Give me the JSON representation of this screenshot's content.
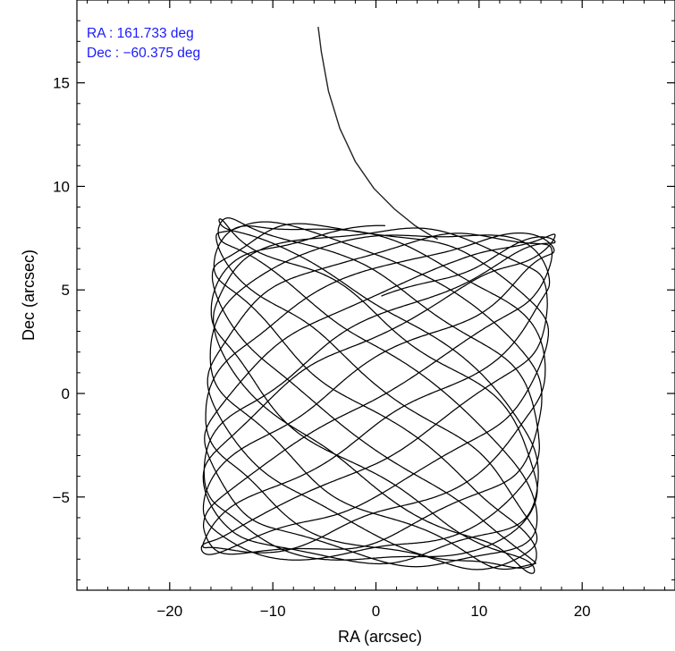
{
  "chart_data": {
    "type": "line",
    "title": "",
    "xlabel": "RA (arcsec)",
    "ylabel": "Dec (arcsec)",
    "xlim": [
      -29,
      29
    ],
    "ylim": [
      -9.5,
      19
    ],
    "x_major_ticks": [
      -20,
      -10,
      0,
      10,
      20
    ],
    "x_tick_labels": [
      "−20",
      "−10",
      "0",
      "10",
      "20"
    ],
    "x_minor_step": 2,
    "y_major_ticks": [
      -5,
      0,
      5,
      10,
      15
    ],
    "y_tick_labels": [
      "−5",
      "0",
      "5",
      "10",
      "15"
    ],
    "y_minor_step": 1,
    "grid": false,
    "annotations": [
      "RA : 161.733 deg",
      "Dec : −60.375 deg"
    ],
    "annotation_color": "#1a1aff",
    "line_color": "#000000",
    "slew_track": {
      "x": [
        -5.6,
        -5.3,
        -4.6,
        -3.5,
        -2.0,
        -0.2,
        1.8,
        3.8,
        5.4,
        6.0
      ],
      "y": [
        17.7,
        16.5,
        14.6,
        12.8,
        11.2,
        9.9,
        8.9,
        8.1,
        7.6,
        7.45
      ]
    },
    "raster": {
      "corners": {
        "top_left": [
          -15.4,
          8.3
        ],
        "top_right": [
          17.2,
          7.5
        ],
        "bottom_right": [
          15.3,
          -8.5
        ],
        "bottom_left": [
          -17.0,
          -7.6
        ]
      },
      "frequency_ra": 17,
      "frequency_dec": 11.15,
      "wobble_amplitude": 0.45,
      "wobble_frequency": 90,
      "samples": 9000
    }
  }
}
